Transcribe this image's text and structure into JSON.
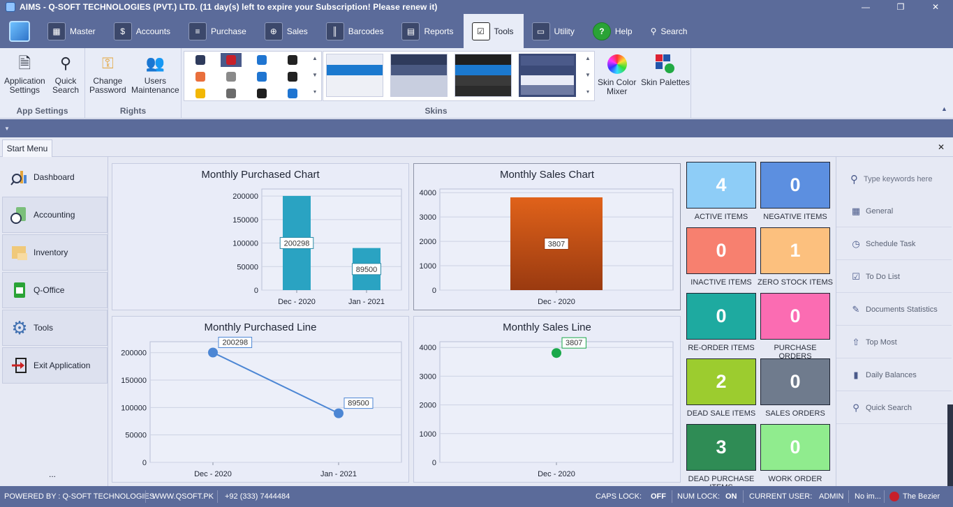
{
  "window": {
    "title": "AIMS - Q-SOFT TECHNOLOGIES (PVT.) LTD. (11 day(s) left to expire your Subscription! Please renew it)",
    "minimize": "—",
    "restore": "❐",
    "close": "✕"
  },
  "menu": {
    "tabs": [
      {
        "label": "Master",
        "icon": "master-icon"
      },
      {
        "label": "Accounts",
        "icon": "accounts-icon"
      },
      {
        "label": "Purchase",
        "icon": "purchase-icon"
      },
      {
        "label": "Sales",
        "icon": "sales-icon"
      },
      {
        "label": "Barcodes",
        "icon": "barcode-icon"
      },
      {
        "label": "Reports",
        "icon": "reports-icon"
      },
      {
        "label": "Tools",
        "icon": "tools-icon",
        "active": true
      },
      {
        "label": "Utility",
        "icon": "utility-icon"
      },
      {
        "label": "Help",
        "icon": "help-icon"
      }
    ],
    "search_label": "Search"
  },
  "ribbon": {
    "groups": {
      "app_settings": "App Settings",
      "rights": "Rights",
      "skins": "Skins"
    },
    "buttons": {
      "application_settings": [
        "Application",
        "Settings"
      ],
      "quick_search": [
        "Quick",
        "Search"
      ],
      "change_password": [
        "Change",
        "Password"
      ],
      "users_maintenance": [
        "Users",
        "Maintenance"
      ],
      "skin_color_mixer": [
        "Skin Color",
        "Mixer"
      ],
      "skin_palettes": "Skin Palettes"
    },
    "skin_colors": [
      "#2f3b5c",
      "#c8202a",
      "#1f75d1",
      "#222222",
      "#e96f3c",
      "#8a8a8a",
      "#1f75d1",
      "#222222",
      "#f2b705",
      "#6b6b6b",
      "#1f1f1f",
      "#1f75d1"
    ],
    "swatches": [
      [
        "#e9ecf5",
        "#1b79cf",
        "#eef0f6",
        "#eef0f6"
      ],
      [
        "#2f3b5c",
        "#4b5a82",
        "#c8cedf",
        "#c8cedf"
      ],
      [
        "#1f1f1f",
        "#1b79cf",
        "#3a3a3a",
        "#2b2b2b"
      ],
      [
        "#4b5a8a",
        "#3b4a78",
        "#e8ebf7",
        "#6f7ba3"
      ]
    ]
  },
  "start_menu": {
    "tab_label": "Start Menu",
    "close": "✕"
  },
  "nav": {
    "items": [
      {
        "label": "Dashboard",
        "icon": "dashboard-icon"
      },
      {
        "label": "Accounting",
        "icon": "accounting-icon"
      },
      {
        "label": "Inventory",
        "icon": "inventory-icon"
      },
      {
        "label": "Q-Office",
        "icon": "q-office-icon"
      },
      {
        "label": "Tools",
        "icon": "gear-icon"
      },
      {
        "label": "Exit Application",
        "icon": "exit-icon"
      }
    ],
    "more": "..."
  },
  "chart_data": [
    {
      "type": "bar",
      "title": "Monthly Purchased Chart",
      "categories": [
        "Dec - 2020",
        "Jan - 2021"
      ],
      "values": [
        200298,
        89500
      ],
      "data_labels": [
        "200298",
        "89500"
      ],
      "yticks": [
        "0",
        "50000",
        "100000",
        "150000",
        "200000"
      ],
      "ylim": [
        0,
        215000
      ],
      "color": "#2aa3c2",
      "grid": true
    },
    {
      "type": "bar",
      "title": "Monthly Sales Chart",
      "categories": [
        "Dec - 2020"
      ],
      "values": [
        3807
      ],
      "data_labels": [
        "3807"
      ],
      "yticks": [
        "0",
        "1000",
        "2000",
        "3000",
        "4000"
      ],
      "ylim": [
        0,
        4150
      ],
      "color": "#d9601a",
      "grid": true
    },
    {
      "type": "line",
      "title": "Monthly Purchased Line",
      "categories": [
        "Dec - 2020",
        "Jan - 2021"
      ],
      "values": [
        200298,
        89500
      ],
      "data_labels": [
        "200298",
        "89500"
      ],
      "yticks": [
        "0",
        "50000",
        "100000",
        "150000",
        "200000"
      ],
      "ylim": [
        0,
        220000
      ],
      "color": "#4c86d4",
      "grid": true
    },
    {
      "type": "line",
      "title": "Monthly Sales Line",
      "categories": [
        "Dec - 2020"
      ],
      "values": [
        3807
      ],
      "data_labels": [
        "3807"
      ],
      "yticks": [
        "0",
        "1000",
        "2000",
        "3000",
        "4000"
      ],
      "ylim": [
        0,
        4200
      ],
      "color": "#1aa84a",
      "grid": true
    }
  ],
  "tiles": [
    {
      "value": "4",
      "label": "ACTIVE ITEMS",
      "color": "#8ecdf7"
    },
    {
      "value": "0",
      "label": "NEGATIVE ITEMS",
      "color": "#5c8fe0"
    },
    {
      "value": "0",
      "label": "INACTIVE ITEMS",
      "color": "#f7806f"
    },
    {
      "value": "1",
      "label": "ZERO STOCK ITEMS",
      "color": "#fcc07e"
    },
    {
      "value": "0",
      "label": "RE-ORDER ITEMS",
      "color": "#1eaaa0"
    },
    {
      "value": "0",
      "label": "PURCHASE ORDERS",
      "color": "#fb6cb2"
    },
    {
      "value": "2",
      "label": "DEAD SALE ITEMS",
      "color": "#9ccc2f"
    },
    {
      "value": "0",
      "label": "SALES ORDERS",
      "color": "#6f7b8d"
    },
    {
      "value": "3",
      "label": "DEAD PURCHASE ITEMS",
      "color": "#2f8c55"
    },
    {
      "value": "0",
      "label": "WORK ORDER",
      "color": "#90ec8e"
    }
  ],
  "right_panel": {
    "search_placeholder": "Type keywords here",
    "items": [
      {
        "label": "General",
        "icon": "general-icon"
      },
      {
        "label": "Schedule Task",
        "icon": "clock-icon"
      },
      {
        "label": "To Do List",
        "icon": "checkbox-icon"
      },
      {
        "label": "Documents Statistics",
        "icon": "documents-icon"
      },
      {
        "label": "Top Most",
        "icon": "arrow-up-icon"
      },
      {
        "label": "Daily Balances",
        "icon": "bar-chart-icon"
      },
      {
        "label": "Quick Search",
        "icon": "search-icon"
      }
    ]
  },
  "status": {
    "powered_by": "POWERED BY : Q-SOFT TECHNOLOGIES",
    "website": "WWW.QSOFT.PK",
    "phone": "+92 (333) 7444484",
    "caps_lock_label": "CAPS LOCK:",
    "caps_lock_value": "OFF",
    "num_lock_label": "NUM LOCK:",
    "num_lock_value": "ON",
    "current_user_label": "CURRENT USER:",
    "current_user_value": "ADMIN",
    "no_image": "No im...",
    "skin_name": "The Bezier"
  }
}
